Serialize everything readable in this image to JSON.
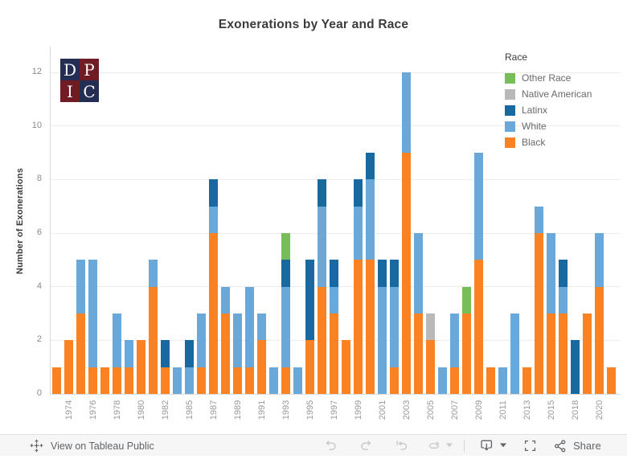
{
  "logo": {
    "letters": [
      "D",
      "P",
      "I",
      "C"
    ]
  },
  "legend": {
    "title": "Race"
  },
  "toolbar": {
    "view_label": "View on Tableau Public",
    "share_label": "Share",
    "buttons": [
      "undo",
      "redo",
      "revert",
      "replay",
      "download",
      "fullscreen",
      "share"
    ]
  },
  "chart_data": {
    "type": "bar",
    "stacked": true,
    "title": "Exonerations by Year and Race",
    "xlabel": "",
    "ylabel": "Number of Exonerations",
    "ylim": [
      0,
      12
    ],
    "yticks": [
      0,
      2,
      4,
      6,
      8,
      10,
      12
    ],
    "grid": "horizontal",
    "legend_position": "top-right",
    "legend_order_top_to_bottom": [
      "Other Race",
      "Native American",
      "Latinx",
      "White",
      "Black"
    ],
    "categories": [
      1973,
      1974,
      1975,
      1976,
      1977,
      1978,
      1979,
      1980,
      1981,
      1982,
      1983,
      1985,
      1986,
      1987,
      1988,
      1989,
      1990,
      1991,
      1992,
      1993,
      1994,
      1995,
      1996,
      1997,
      1998,
      1999,
      2000,
      2001,
      2002,
      2003,
      2004,
      2005,
      2006,
      2007,
      2008,
      2009,
      2010,
      2011,
      2012,
      2013,
      2014,
      2015,
      2016,
      2018,
      2019,
      2020,
      2021
    ],
    "x_tick_labels": [
      1974,
      1976,
      1978,
      1980,
      1982,
      1985,
      1987,
      1989,
      1991,
      1993,
      1995,
      1997,
      1999,
      2001,
      2003,
      2005,
      2007,
      2009,
      2011,
      2013,
      2015,
      2018,
      2020
    ],
    "series": [
      {
        "name": "Black",
        "color": "#fa8222",
        "values": [
          1,
          2,
          3,
          1,
          1,
          1,
          1,
          2,
          4,
          1,
          0,
          0,
          1,
          6,
          3,
          1,
          1,
          2,
          0,
          1,
          0,
          2,
          4,
          3,
          2,
          5,
          5,
          0,
          1,
          9,
          3,
          2,
          0,
          1,
          3,
          5,
          1,
          0,
          0,
          1,
          6,
          3,
          3,
          0,
          3,
          4,
          1
        ]
      },
      {
        "name": "White",
        "color": "#69a8d8",
        "values": [
          0,
          0,
          2,
          4,
          0,
          2,
          1,
          0,
          1,
          0,
          1,
          1,
          2,
          1,
          1,
          2,
          3,
          1,
          1,
          3,
          1,
          0,
          3,
          1,
          0,
          2,
          3,
          4,
          3,
          3,
          3,
          0,
          1,
          2,
          0,
          4,
          0,
          1,
          3,
          0,
          1,
          3,
          1,
          0,
          0,
          2,
          0
        ]
      },
      {
        "name": "Latinx",
        "color": "#17699f",
        "values": [
          0,
          0,
          0,
          0,
          0,
          0,
          0,
          0,
          0,
          1,
          0,
          1,
          0,
          1,
          0,
          0,
          0,
          0,
          0,
          1,
          0,
          3,
          1,
          1,
          0,
          1,
          1,
          1,
          1,
          0,
          0,
          0,
          0,
          0,
          0,
          0,
          0,
          0,
          0,
          0,
          0,
          0,
          1,
          2,
          0,
          0,
          0
        ]
      },
      {
        "name": "Native American",
        "color": "#b9b9b9",
        "values": [
          0,
          0,
          0,
          0,
          0,
          0,
          0,
          0,
          0,
          0,
          0,
          0,
          0,
          0,
          0,
          0,
          0,
          0,
          0,
          0,
          0,
          0,
          0,
          0,
          0,
          0,
          0,
          0,
          0,
          0,
          0,
          1,
          0,
          0,
          0,
          0,
          0,
          0,
          0,
          0,
          0,
          0,
          0,
          0,
          0,
          0,
          0
        ]
      },
      {
        "name": "Other Race",
        "color": "#77bd59",
        "values": [
          0,
          0,
          0,
          0,
          0,
          0,
          0,
          0,
          0,
          0,
          0,
          0,
          0,
          0,
          0,
          0,
          0,
          0,
          0,
          1,
          0,
          0,
          0,
          0,
          0,
          0,
          0,
          0,
          0,
          0,
          0,
          0,
          0,
          0,
          1,
          0,
          0,
          0,
          0,
          0,
          0,
          0,
          0,
          0,
          0,
          0,
          0
        ]
      }
    ]
  }
}
